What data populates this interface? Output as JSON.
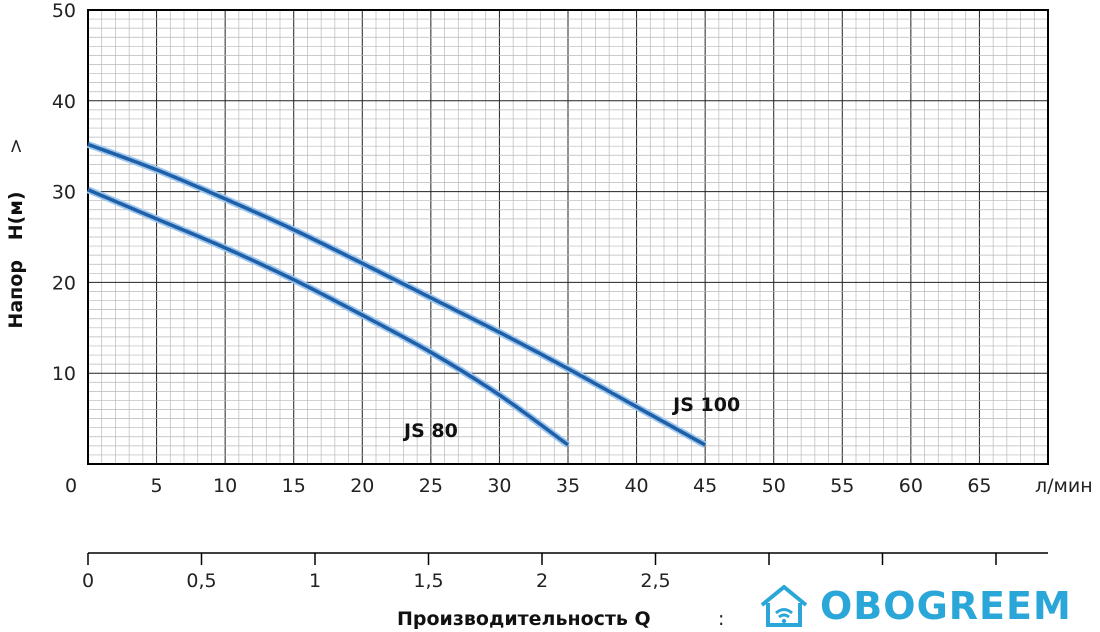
{
  "chart_data": {
    "type": "line",
    "ylabel": "Напор   H(м)",
    "ylabel_arrow": ">",
    "xlabel": "Производительность Q",
    "xlabel_arrow": ":",
    "x_unit": "л/мин",
    "xlim": [
      0,
      70
    ],
    "ylim": [
      0,
      50
    ],
    "x_ticks": [
      "0",
      "5",
      "10",
      "15",
      "20",
      "25",
      "30",
      "35",
      "40",
      "45",
      "50",
      "55",
      "60",
      "65"
    ],
    "y_ticks": [
      "50",
      "40",
      "30",
      "20",
      "10"
    ],
    "secondary_x_ticks": [
      "0",
      "0,5",
      "1",
      "1,5",
      "2",
      "2,5"
    ],
    "grid": true,
    "series": [
      {
        "name": "JS 100",
        "x": [
          0,
          5,
          10,
          15,
          20,
          25,
          30,
          35,
          40,
          45
        ],
        "y": [
          35.2,
          32.4,
          29.2,
          25.8,
          22.1,
          18.3,
          14.5,
          10.5,
          6.3,
          2.1
        ]
      },
      {
        "name": "JS 80",
        "x": [
          0,
          5,
          10,
          15,
          20,
          25,
          30,
          35
        ],
        "y": [
          30.2,
          27.0,
          23.8,
          20.3,
          16.4,
          12.3,
          7.6,
          2.1
        ]
      }
    ],
    "line_color": "#1f5fa8"
  },
  "brand": {
    "text": "OBOGREEM",
    "icon": "house-wifi-icon",
    "color": "#2aa7d8"
  }
}
